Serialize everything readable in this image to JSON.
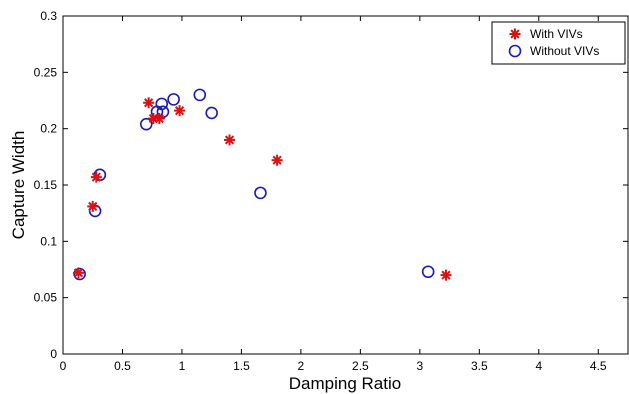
{
  "chart_data": {
    "type": "scatter",
    "title": "",
    "xlabel": "Damping Ratio",
    "ylabel": "Capture Width",
    "xlim": [
      0,
      4.75
    ],
    "ylim": [
      0,
      0.3
    ],
    "xticks": [
      "0",
      "0.5",
      "1",
      "1.5",
      "2",
      "2.5",
      "3",
      "3.5",
      "4",
      "4.5"
    ],
    "yticks": [
      "0",
      "0.05",
      "0.1",
      "0.15",
      "0.2",
      "0.25",
      "0.3"
    ],
    "xtick_values": [
      0,
      0.5,
      1,
      1.5,
      2,
      2.5,
      3,
      3.5,
      4,
      4.5
    ],
    "ytick_values": [
      0,
      0.05,
      0.1,
      0.15,
      0.2,
      0.25,
      0.3
    ],
    "grid": false,
    "legend_position": "top-right",
    "series": [
      {
        "name": "With VIVs",
        "marker": "asterisk",
        "color": "#dd1111",
        "points": [
          [
            0.13,
            0.072
          ],
          [
            0.25,
            0.131
          ],
          [
            0.28,
            0.157
          ],
          [
            0.72,
            0.223
          ],
          [
            0.76,
            0.209
          ],
          [
            0.81,
            0.209
          ],
          [
            0.98,
            0.216
          ],
          [
            1.4,
            0.19
          ],
          [
            1.8,
            0.172
          ],
          [
            3.22,
            0.07
          ]
        ]
      },
      {
        "name": "Without VIVs",
        "marker": "circle",
        "color": "#1a1ab8",
        "points": [
          [
            0.14,
            0.071
          ],
          [
            0.27,
            0.127
          ],
          [
            0.31,
            0.159
          ],
          [
            0.7,
            0.204
          ],
          [
            0.79,
            0.215
          ],
          [
            0.83,
            0.222
          ],
          [
            0.84,
            0.215
          ],
          [
            0.93,
            0.226
          ],
          [
            1.15,
            0.23
          ],
          [
            1.25,
            0.214
          ],
          [
            1.66,
            0.143
          ],
          [
            3.07,
            0.073
          ]
        ]
      }
    ]
  }
}
